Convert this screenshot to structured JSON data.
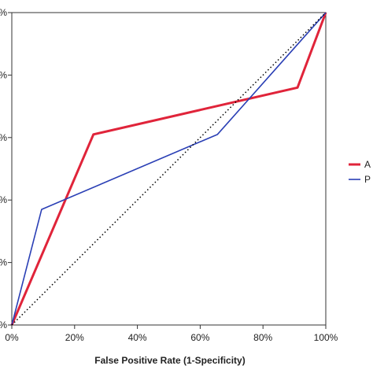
{
  "chart_data": {
    "type": "line",
    "xlabel": "False Positive Rate (1-Specificity)",
    "ylabel": "",
    "xlim": [
      0,
      1
    ],
    "ylim": [
      0,
      1
    ],
    "x_ticks": [
      0,
      0.2,
      0.4,
      0.6,
      0.8,
      1.0
    ],
    "x_tick_labels": [
      "0%",
      "20%",
      "40%",
      "60%",
      "80%",
      "100%"
    ],
    "y_ticks": [
      0,
      0.2,
      0.4,
      0.6,
      0.8,
      1.0
    ],
    "y_tick_labels": [
      "%",
      "%",
      "%",
      "%",
      "%",
      "%"
    ],
    "grid": false,
    "legend_position": "right",
    "series": [
      {
        "name": "A",
        "color": "#e0243a",
        "x": [
          0,
          0.26,
          0.91,
          1.0
        ],
        "y": [
          0,
          0.61,
          0.76,
          1.0
        ]
      },
      {
        "name": "P",
        "color": "#2a3fb5",
        "x": [
          0,
          0.095,
          0.655,
          1.0
        ],
        "y": [
          0,
          0.37,
          0.61,
          1.0
        ]
      },
      {
        "name": "",
        "color": "#000000",
        "style": "dotted",
        "x": [
          0,
          1
        ],
        "y": [
          0,
          1
        ]
      }
    ]
  }
}
